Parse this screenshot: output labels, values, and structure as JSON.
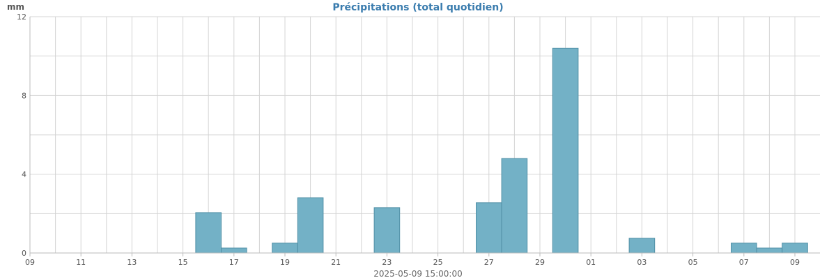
{
  "chart_data": {
    "type": "bar",
    "title": "Précipitations (total quotidien)",
    "ylabel": "mm",
    "xlabel": "2025-05-09 15:00:00",
    "ylim": [
      0,
      12
    ],
    "yticks": [
      0,
      4,
      8,
      12
    ],
    "grid": true,
    "colors": {
      "title": "#3a7cae",
      "bar_fill": "#73b1c6",
      "bar_stroke": "#4f8fa6",
      "grid": "#d4d4d4",
      "axis": "#bbbbbb"
    },
    "xticks": [
      {
        "label": "09",
        "day": 0
      },
      {
        "label": "11",
        "day": 2
      },
      {
        "label": "13",
        "day": 4
      },
      {
        "label": "15",
        "day": 6
      },
      {
        "label": "17",
        "day": 8
      },
      {
        "label": "19",
        "day": 10
      },
      {
        "label": "21",
        "day": 12
      },
      {
        "label": "23",
        "day": 14
      },
      {
        "label": "25",
        "day": 16
      },
      {
        "label": "27",
        "day": 18
      },
      {
        "label": "29",
        "day": 20
      },
      {
        "label": "01",
        "day": 22
      },
      {
        "label": "03",
        "day": 24
      },
      {
        "label": "05",
        "day": 26
      },
      {
        "label": "07",
        "day": 28
      },
      {
        "label": "09",
        "day": 30
      }
    ],
    "days": 31,
    "values": [
      0,
      0,
      0,
      0,
      0,
      0,
      2.05,
      0.25,
      0,
      0.5,
      2.8,
      0,
      0,
      2.3,
      0,
      0,
      0,
      2.55,
      4.8,
      0,
      10.4,
      0,
      0,
      0.75,
      0,
      0,
      0,
      0.5,
      0.25,
      0.5,
      0
    ]
  }
}
